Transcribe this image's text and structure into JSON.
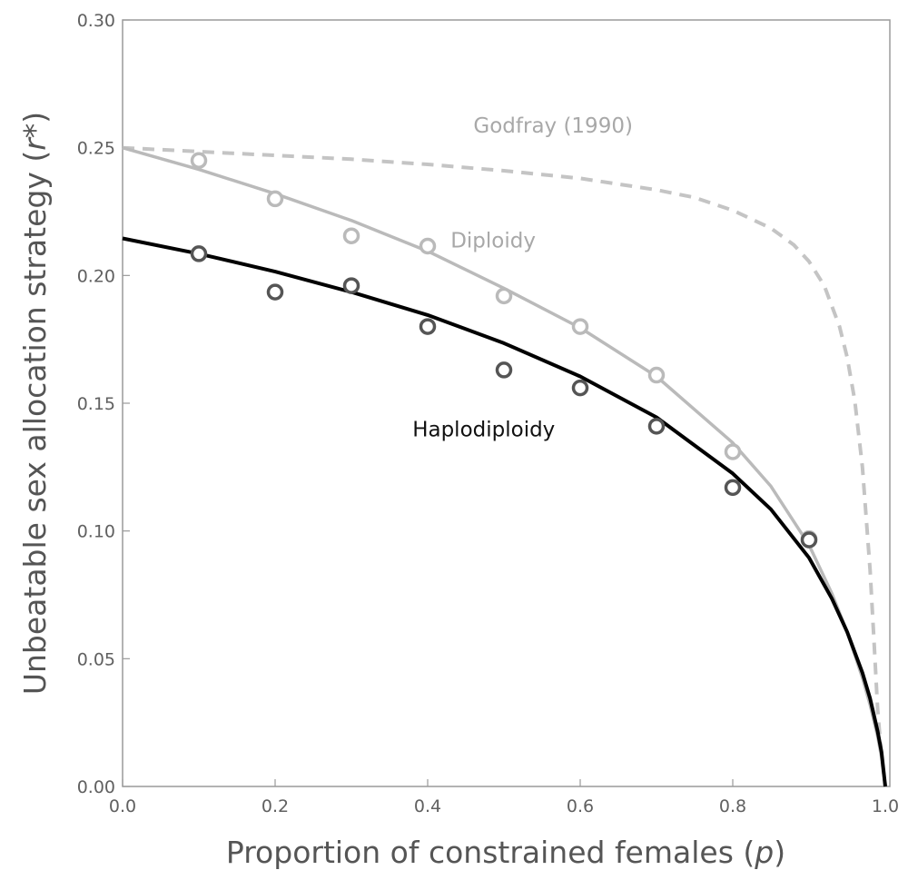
{
  "chart_data": {
    "type": "line",
    "xlabel": "Proportion of constrained females (",
    "xlabel_var": "p",
    "xlabel_end": ")",
    "ylabel": "Unbeatable sex allocation strategy (",
    "ylabel_var": "r*",
    "ylabel_end": ")",
    "xlim": [
      0,
      1.0
    ],
    "ylim": [
      0,
      0.3
    ],
    "x_ticks": [
      0.0,
      0.2,
      0.4,
      0.6,
      0.8,
      1.0
    ],
    "x_tick_labels": [
      "0.0",
      "0.2",
      "0.4",
      "0.6",
      "0.8",
      "1.0"
    ],
    "y_ticks": [
      0.0,
      0.05,
      0.1,
      0.15,
      0.2,
      0.25,
      0.3
    ],
    "y_tick_labels": [
      "0.00",
      "0.05",
      "0.10",
      "0.15",
      "0.20",
      "0.25",
      "0.30"
    ],
    "grid": false,
    "annotations": [
      {
        "text": "Godfray (1990)",
        "x": 0.46,
        "y": 0.256,
        "color": "#a8a8a8"
      },
      {
        "text": "Diploidy",
        "x": 0.43,
        "y": 0.211,
        "color": "#a8a8a8"
      },
      {
        "text": "Haplodiploidy",
        "x": 0.38,
        "y": 0.137,
        "color": "#111111"
      }
    ],
    "series": [
      {
        "key": "godfray",
        "kind": "line",
        "style": "dashed",
        "color": "#c4c4c4",
        "x": [
          0.0,
          0.1,
          0.2,
          0.3,
          0.4,
          0.5,
          0.6,
          0.7,
          0.75,
          0.8,
          0.85,
          0.88,
          0.9,
          0.92,
          0.94,
          0.95,
          0.96,
          0.97,
          0.98,
          0.985,
          0.99,
          0.995,
          1.0
        ],
        "y": [
          0.25,
          0.2485,
          0.247,
          0.2455,
          0.2435,
          0.241,
          0.238,
          0.2335,
          0.2305,
          0.2255,
          0.2185,
          0.212,
          0.2055,
          0.196,
          0.18,
          0.168,
          0.151,
          0.125,
          0.085,
          0.058,
          0.03,
          0.012,
          0.0
        ]
      },
      {
        "key": "diploidy",
        "kind": "line",
        "style": "solid",
        "color": "#bababa",
        "x": [
          0.0,
          0.1,
          0.2,
          0.3,
          0.4,
          0.5,
          0.6,
          0.7,
          0.8,
          0.85,
          0.9,
          0.93,
          0.95,
          0.97,
          0.98,
          0.99,
          0.995,
          1.0
        ],
        "y": [
          0.25,
          0.2415,
          0.232,
          0.2215,
          0.2095,
          0.195,
          0.1795,
          0.1605,
          0.1345,
          0.1175,
          0.0945,
          0.0755,
          0.0605,
          0.0425,
          0.032,
          0.0195,
          0.0115,
          0.0
        ]
      },
      {
        "key": "haplodiploidy",
        "kind": "line",
        "style": "solid",
        "color": "#000000",
        "x": [
          0.0,
          0.1,
          0.2,
          0.3,
          0.4,
          0.5,
          0.6,
          0.7,
          0.8,
          0.85,
          0.9,
          0.93,
          0.95,
          0.97,
          0.98,
          0.99,
          0.995,
          1.0
        ],
        "y": [
          0.2145,
          0.2085,
          0.2015,
          0.1935,
          0.1845,
          0.1735,
          0.1605,
          0.1445,
          0.1225,
          0.1085,
          0.0895,
          0.0735,
          0.0605,
          0.0445,
          0.0345,
          0.0215,
          0.0135,
          0.0
        ]
      },
      {
        "key": "diploidy-sim",
        "kind": "points",
        "color": "#bababa",
        "x": [
          0.1,
          0.2,
          0.3,
          0.4,
          0.5,
          0.6,
          0.7,
          0.8,
          0.9
        ],
        "y": [
          0.245,
          0.23,
          0.2155,
          0.2115,
          0.192,
          0.18,
          0.161,
          0.131,
          0.097
        ]
      },
      {
        "key": "haplodiploidy-sim",
        "kind": "points",
        "color": "#555555",
        "x": [
          0.1,
          0.2,
          0.3,
          0.4,
          0.5,
          0.6,
          0.7,
          0.8,
          0.9
        ],
        "y": [
          0.2085,
          0.1935,
          0.196,
          0.18,
          0.163,
          0.156,
          0.141,
          0.117,
          0.0965
        ]
      }
    ]
  }
}
